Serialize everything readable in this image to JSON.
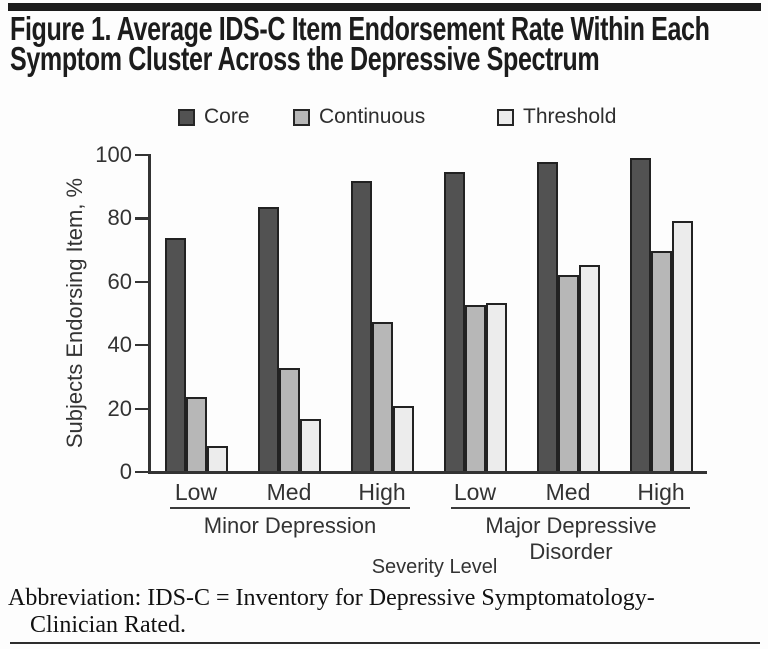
{
  "figure": {
    "title_line1": "Figure 1. Average IDS-C Item Endorsement Rate Within Each",
    "title_line2": "Symptom Cluster Across the Depressive Spectrum",
    "footnote_line1": "Abbreviation: IDS-C = Inventory for Depressive Symptomatology-",
    "footnote_line2": "Clinician Rated."
  },
  "chart_data": {
    "type": "bar",
    "title": "Figure 1. Average IDS-C Item Endorsement Rate Within Each Symptom Cluster Across the Depressive Spectrum",
    "xlabel": "Severity Level",
    "ylabel": "Subjects Endorsing Item, %",
    "ylim": [
      0,
      100
    ],
    "yticks": [
      0,
      20,
      40,
      60,
      80,
      100
    ],
    "grid": false,
    "legend_position": "top",
    "groups": [
      {
        "label": "Minor Depression",
        "categories": [
          "Low",
          "Med",
          "High"
        ]
      },
      {
        "label": "Major Depressive Disorder",
        "categories": [
          "Low",
          "Med",
          "High"
        ]
      }
    ],
    "categories": [
      "Low",
      "Med",
      "High",
      "Low",
      "Med",
      "High"
    ],
    "series": [
      {
        "name": "Core",
        "color": "#525252",
        "values": [
          74,
          84,
          92,
          95,
          98,
          99.5
        ]
      },
      {
        "name": "Continuous",
        "color": "#b7b7b7",
        "values": [
          24,
          33,
          47.5,
          53,
          62.5,
          70
        ]
      },
      {
        "name": "Threshold",
        "color": "#ececec",
        "values": [
          8.5,
          17,
          21,
          53.5,
          65.5,
          79.5
        ]
      }
    ],
    "bar_border_color": "#222222",
    "axis_color": "#333333"
  }
}
